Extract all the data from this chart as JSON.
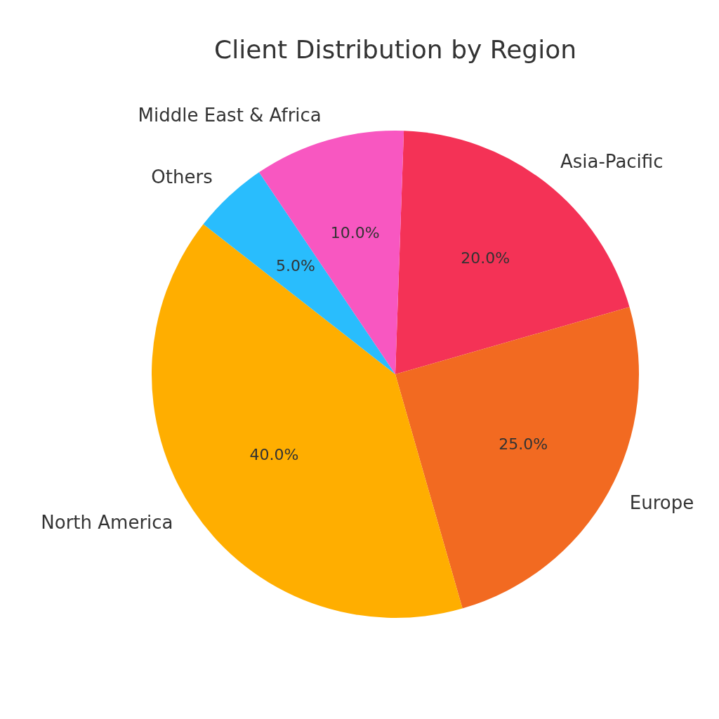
{
  "chart_data": {
    "type": "pie",
    "title": "Client Distribution by Region",
    "categories": [
      "Asia-Pacific",
      "Europe",
      "North America",
      "Others",
      "Middle East & Africa"
    ],
    "values": [
      20,
      25,
      40,
      5,
      10
    ],
    "colors": [
      "#f43256",
      "#f26a21",
      "#ffae00",
      "#29bdfd",
      "#f857c1"
    ],
    "value_labels": [
      "20.0%",
      "25.0%",
      "40.0%",
      "5.0%",
      "10.0%"
    ],
    "legend": false
  }
}
